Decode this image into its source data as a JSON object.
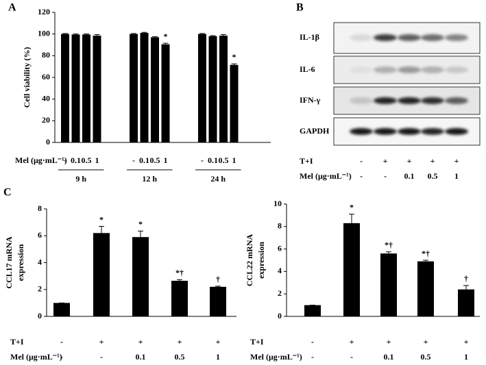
{
  "chart_data": [
    {
      "type": "bar",
      "panel": "A",
      "ylabel": [
        "Cell viability (%)"
      ],
      "color": "#000000",
      "categories": [
        "-",
        "0.1",
        "0.5",
        "1",
        "-",
        "0.1",
        "0.5",
        "1",
        "-",
        "0.1",
        "0.5",
        "1"
      ],
      "category_label": "Mel (μg·mL⁻¹)",
      "group_labels": [
        "9 h",
        "12 h",
        "24 h"
      ],
      "values": [
        100,
        99.5,
        99.5,
        98.5,
        100,
        101,
        97,
        90.5,
        100,
        98,
        98.5,
        71.5
      ],
      "errors": [
        0.5,
        0.5,
        0.5,
        1,
        0.5,
        0.5,
        0.5,
        1,
        0.5,
        0.5,
        1,
        1
      ],
      "annotations": [
        null,
        null,
        null,
        null,
        null,
        null,
        null,
        "*",
        null,
        null,
        null,
        "*"
      ],
      "ylim": [
        0,
        120
      ],
      "yticks": [
        0,
        20,
        40,
        60,
        80,
        100,
        120
      ]
    },
    {
      "type": "bar",
      "panel": "C",
      "ylabel": [
        "CCL17 mRNA",
        "expression"
      ],
      "color": "#000000",
      "treatment_row": {
        "label": "T+I",
        "values": [
          "-",
          "+",
          "+",
          "+",
          "+"
        ]
      },
      "categories": [
        "-",
        "-",
        "0.1",
        "0.5",
        "1"
      ],
      "category_label": "Mel (μg·mL⁻¹)",
      "values": [
        1,
        6.2,
        5.9,
        2.65,
        2.2
      ],
      "errors": [
        0,
        0.5,
        0.45,
        0.08,
        0.05
      ],
      "annotations": [
        null,
        "*",
        "*",
        "*†",
        "†"
      ],
      "ylim": [
        0,
        8
      ],
      "yticks": [
        0,
        2,
        4,
        6,
        8
      ]
    },
    {
      "type": "bar",
      "ylabel": [
        "CCL22 mRNA",
        "expression"
      ],
      "color": "#000000",
      "treatment_row": {
        "label": "T+I",
        "values": [
          "-",
          "+",
          "+",
          "+",
          "+"
        ]
      },
      "categories": [
        "-",
        "-",
        "0.1",
        "0.5",
        "1"
      ],
      "category_label": "Mel (μg·mL⁻¹)",
      "values": [
        1,
        8.3,
        5.6,
        4.9,
        2.4
      ],
      "errors": [
        0,
        0.8,
        0.15,
        0.1,
        0.35
      ],
      "annotations": [
        null,
        "*",
        "*†",
        "*†",
        "†"
      ],
      "ylim": [
        0,
        10
      ],
      "yticks": [
        0,
        2,
        4,
        6,
        8,
        10
      ]
    }
  ],
  "blot": {
    "panel": "B",
    "bands": [
      "IL-1β",
      "IL-6",
      "IFN-γ",
      "GAPDH"
    ],
    "treatment_row": {
      "label": "T+I",
      "values": [
        "-",
        "+",
        "+",
        "+",
        "+"
      ]
    },
    "mel_row": {
      "label": "Mel (μg·mL⁻¹)",
      "values": [
        "-",
        "-",
        "0.1",
        "0.5",
        "1"
      ]
    }
  }
}
